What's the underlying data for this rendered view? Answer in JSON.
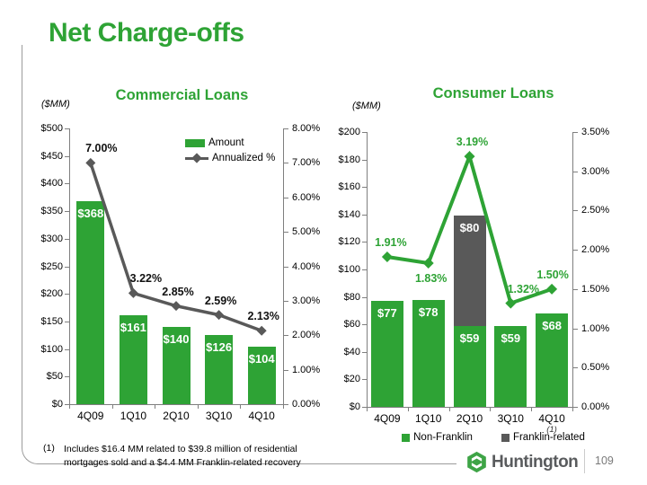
{
  "slide": {
    "title": "Net Charge-offs",
    "page_number": "109",
    "logo_text": "Huntington",
    "footnote": {
      "marker": "(1)",
      "line1": "Includes $16.4 MM related to $39.8 million of residential",
      "line2": "mortgages sold and a $4.4 MM Franklin-related recovery"
    }
  },
  "colors": {
    "green": "#2EA335",
    "dark_gray": "#595959",
    "axis_gray": "#7f7f7f",
    "logo_green": "#3EA446"
  },
  "chart_data": [
    {
      "type": "bar",
      "title": "Commercial Loans",
      "units": "($MM)",
      "categories": [
        "4Q09",
        "1Q10",
        "2Q10",
        "3Q10",
        "4Q10"
      ],
      "series": [
        {
          "name": "Amount",
          "type": "bar",
          "color": "#2EA335",
          "values": [
            368,
            161,
            140,
            126,
            104
          ],
          "labels": [
            "$368",
            "$161",
            "$140",
            "$126",
            "$104"
          ]
        },
        {
          "name": "Annualized %",
          "type": "line",
          "color": "#595959",
          "values": [
            7.0,
            3.22,
            2.85,
            2.59,
            2.13
          ],
          "labels": [
            "7.00%",
            "3.22%",
            "2.85%",
            "2.59%",
            "2.13%"
          ],
          "label_color": "#111111",
          "label_dx": [
            12,
            14,
            2,
            2,
            2
          ],
          "label_side": [
            "above",
            "above",
            "above",
            "above",
            "above"
          ]
        }
      ],
      "left_axis": {
        "min": 0,
        "max": 500,
        "step": 50,
        "ticks": [
          "$0",
          "$50",
          "$100",
          "$150",
          "$200",
          "$250",
          "$300",
          "$350",
          "$400",
          "$450",
          "$500"
        ]
      },
      "right_axis": {
        "min": 0,
        "max": 8,
        "step": 1,
        "ticks": [
          "0.00%",
          "1.00%",
          "2.00%",
          "3.00%",
          "4.00%",
          "5.00%",
          "6.00%",
          "7.00%",
          "8.00%"
        ]
      },
      "legend": {
        "position": "inset-top-right",
        "items": [
          {
            "label": "Amount",
            "swatch": "bar",
            "color": "#2EA335"
          },
          {
            "label": "Annualized %",
            "swatch": "line",
            "color": "#595959"
          }
        ]
      }
    },
    {
      "type": "stacked-bar",
      "title": "Consumer Loans",
      "units": "($MM)",
      "categories": [
        "4Q09",
        "1Q10",
        "2Q10",
        "3Q10",
        "4Q10"
      ],
      "category_footnote": "(1)",
      "series": [
        {
          "name": "Non-Franklin",
          "type": "bar",
          "color": "#2EA335",
          "values": [
            77,
            78,
            59,
            59,
            68
          ],
          "labels": [
            "$77",
            "$78",
            "$59",
            "$59",
            "$68"
          ]
        },
        {
          "name": "Franklin-related",
          "type": "bar",
          "color": "#595959",
          "values": [
            0,
            0,
            80,
            0,
            0
          ],
          "labels": [
            "",
            "",
            "$80",
            "",
            ""
          ]
        },
        {
          "name": "Annualized %",
          "type": "line",
          "color": "#2EA335",
          "values": [
            1.91,
            1.83,
            3.19,
            1.32,
            1.5
          ],
          "labels": [
            "1.91%",
            "1.83%",
            "3.19%",
            "1.32%",
            "1.50%"
          ],
          "label_color": "#2EA335",
          "label_dx": [
            4,
            3,
            3,
            14,
            1
          ],
          "label_side": [
            "above",
            "below",
            "above",
            "above",
            "above"
          ]
        }
      ],
      "left_axis": {
        "min": 0,
        "max": 200,
        "step": 20,
        "ticks": [
          "$0",
          "$20",
          "$40",
          "$60",
          "$80",
          "$100",
          "$120",
          "$140",
          "$160",
          "$180",
          "$200"
        ]
      },
      "right_axis": {
        "min": 0,
        "max": 3.5,
        "step": 0.5,
        "ticks": [
          "0.00%",
          "0.50%",
          "1.00%",
          "1.50%",
          "2.00%",
          "2.50%",
          "3.00%",
          "3.50%"
        ]
      },
      "legend": {
        "position": "bottom",
        "items": [
          {
            "label": "Non-Franklin",
            "swatch": "bar",
            "color": "#2EA335"
          },
          {
            "label": "Franklin-related",
            "swatch": "bar",
            "color": "#595959"
          }
        ]
      }
    }
  ]
}
